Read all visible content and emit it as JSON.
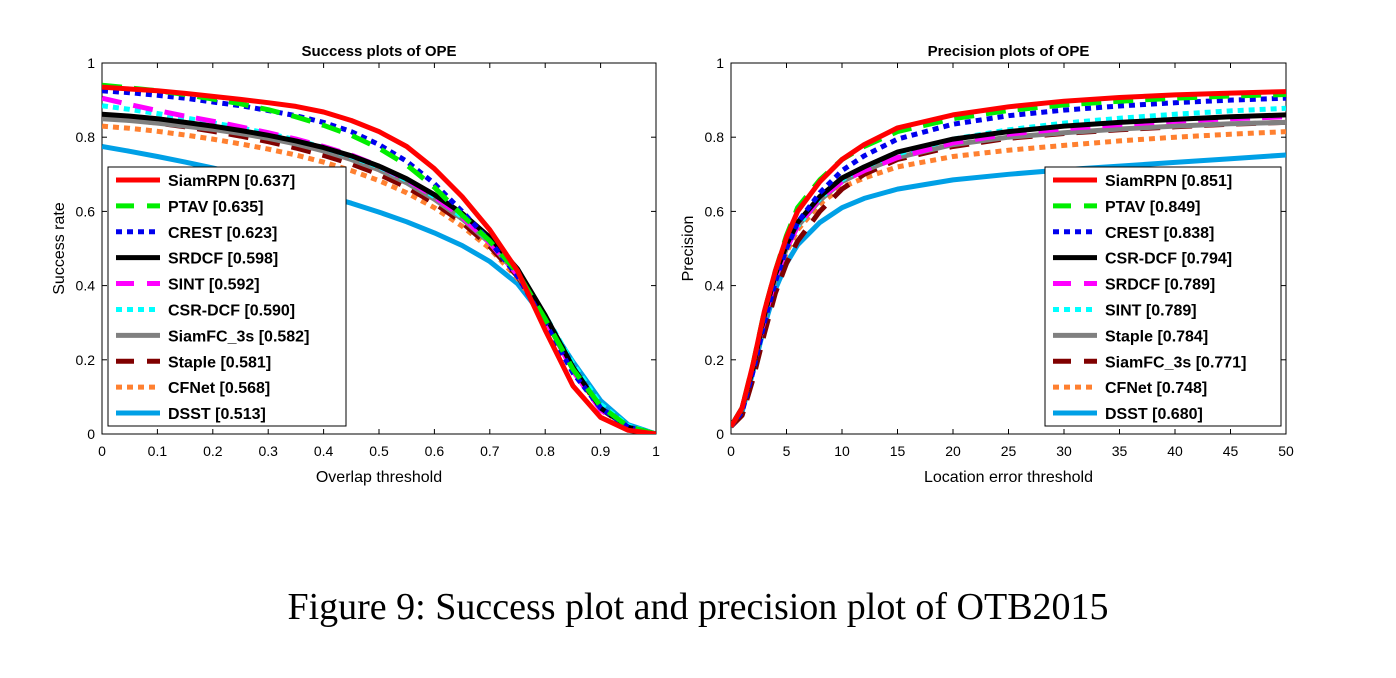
{
  "figure": {
    "caption": "Figure 9: Success plot and precision plot of OTB2015"
  },
  "chart_data": [
    {
      "type": "line",
      "title": "Success plots of OPE",
      "xlabel": "Overlap threshold",
      "ylabel": "Success rate",
      "xlim": [
        0,
        1
      ],
      "ylim": [
        0,
        1
      ],
      "xticks": [
        "0",
        "0.1",
        "0.2",
        "0.3",
        "0.4",
        "0.5",
        "0.6",
        "0.7",
        "0.8",
        "0.9",
        "1"
      ],
      "yticks": [
        "0",
        "0.2",
        "0.4",
        "0.6",
        "0.8",
        "1"
      ],
      "grid": false,
      "legend_position": "bottom-left",
      "x": [
        0,
        0.05,
        0.1,
        0.15,
        0.2,
        0.25,
        0.3,
        0.35,
        0.4,
        0.45,
        0.5,
        0.55,
        0.6,
        0.65,
        0.7,
        0.75,
        0.8,
        0.85,
        0.9,
        0.95,
        1
      ],
      "series": [
        {
          "name": "SiamRPN [0.637]",
          "color": "#ff0000",
          "dash": "solid",
          "values": [
            0.935,
            0.93,
            0.925,
            0.918,
            0.91,
            0.902,
            0.893,
            0.883,
            0.868,
            0.845,
            0.815,
            0.775,
            0.715,
            0.64,
            0.55,
            0.44,
            0.28,
            0.13,
            0.045,
            0.01,
            0
          ]
        },
        {
          "name": "PTAV [0.635]",
          "color": "#00ee00",
          "dash": "dash",
          "values": [
            0.94,
            0.933,
            0.925,
            0.915,
            0.903,
            0.89,
            0.874,
            0.855,
            0.832,
            0.805,
            0.77,
            0.725,
            0.665,
            0.59,
            0.52,
            0.435,
            0.31,
            0.175,
            0.075,
            0.02,
            0
          ]
        },
        {
          "name": "CREST [0.623]",
          "color": "#0000ee",
          "dash": "dot",
          "values": [
            0.925,
            0.92,
            0.913,
            0.905,
            0.895,
            0.885,
            0.872,
            0.858,
            0.84,
            0.815,
            0.78,
            0.735,
            0.675,
            0.6,
            0.52,
            0.425,
            0.3,
            0.165,
            0.07,
            0.018,
            0
          ]
        },
        {
          "name": "SRDCF [0.598]",
          "color": "#000000",
          "dash": "solid",
          "values": [
            0.862,
            0.857,
            0.85,
            0.84,
            0.83,
            0.818,
            0.805,
            0.79,
            0.772,
            0.75,
            0.722,
            0.688,
            0.645,
            0.595,
            0.53,
            0.445,
            0.32,
            0.18,
            0.07,
            0.018,
            0
          ]
        },
        {
          "name": "SINT [0.592]",
          "color": "#ff00ff",
          "dash": "dash",
          "values": [
            0.905,
            0.888,
            0.872,
            0.857,
            0.843,
            0.828,
            0.812,
            0.795,
            0.775,
            0.752,
            0.722,
            0.685,
            0.64,
            0.585,
            0.515,
            0.43,
            0.31,
            0.17,
            0.065,
            0.016,
            0
          ]
        },
        {
          "name": "CSR-DCF [0.590]",
          "color": "#00ffff",
          "dash": "dot",
          "values": [
            0.885,
            0.875,
            0.864,
            0.852,
            0.839,
            0.825,
            0.81,
            0.793,
            0.772,
            0.748,
            0.72,
            0.684,
            0.64,
            0.585,
            0.52,
            0.435,
            0.32,
            0.19,
            0.08,
            0.022,
            0
          ]
        },
        {
          "name": "SiamFC_3s [0.582]",
          "color": "#808080",
          "dash": "solid",
          "values": [
            0.85,
            0.845,
            0.838,
            0.83,
            0.821,
            0.81,
            0.797,
            0.782,
            0.763,
            0.74,
            0.712,
            0.677,
            0.633,
            0.58,
            0.515,
            0.43,
            0.31,
            0.18,
            0.07,
            0.018,
            0
          ]
        },
        {
          "name": "Staple [0.581]",
          "color": "#800000",
          "dash": "dash",
          "values": [
            0.855,
            0.847,
            0.838,
            0.828,
            0.816,
            0.803,
            0.788,
            0.771,
            0.751,
            0.728,
            0.7,
            0.665,
            0.622,
            0.57,
            0.505,
            0.425,
            0.31,
            0.175,
            0.068,
            0.017,
            0
          ]
        },
        {
          "name": "CFNet [0.568]",
          "color": "#ff8030",
          "dash": "dot",
          "values": [
            0.83,
            0.824,
            0.816,
            0.806,
            0.795,
            0.782,
            0.768,
            0.752,
            0.733,
            0.71,
            0.683,
            0.65,
            0.61,
            0.56,
            0.5,
            0.42,
            0.31,
            0.18,
            0.07,
            0.018,
            0
          ]
        },
        {
          "name": "DSST [0.513]",
          "color": "#00a0e6",
          "dash": "solid",
          "values": [
            0.775,
            0.762,
            0.748,
            0.733,
            0.717,
            0.7,
            0.682,
            0.663,
            0.643,
            0.622,
            0.598,
            0.572,
            0.542,
            0.508,
            0.465,
            0.405,
            0.31,
            0.195,
            0.09,
            0.025,
            0
          ]
        }
      ]
    },
    {
      "type": "line",
      "title": "Precision plots of OPE",
      "xlabel": "Location error threshold",
      "ylabel": "Precision",
      "xlim": [
        0,
        50
      ],
      "ylim": [
        0,
        1
      ],
      "xticks": [
        "0",
        "5",
        "10",
        "15",
        "20",
        "25",
        "30",
        "35",
        "40",
        "45",
        "50"
      ],
      "yticks": [
        "0",
        "0.2",
        "0.4",
        "0.6",
        "0.8",
        "1"
      ],
      "grid": false,
      "legend_position": "bottom-right",
      "x": [
        0,
        1,
        2,
        3,
        4,
        5,
        6,
        8,
        10,
        12,
        15,
        20,
        25,
        30,
        35,
        40,
        45,
        50
      ],
      "series": [
        {
          "name": "SiamRPN [0.851]",
          "color": "#ff0000",
          "dash": "solid",
          "values": [
            0.02,
            0.07,
            0.19,
            0.33,
            0.44,
            0.53,
            0.6,
            0.68,
            0.74,
            0.78,
            0.825,
            0.86,
            0.882,
            0.897,
            0.907,
            0.914,
            0.919,
            0.923
          ]
        },
        {
          "name": "PTAV [0.849]",
          "color": "#00ee00",
          "dash": "dash",
          "values": [
            0.02,
            0.07,
            0.19,
            0.33,
            0.44,
            0.535,
            0.61,
            0.685,
            0.74,
            0.775,
            0.815,
            0.85,
            0.872,
            0.887,
            0.897,
            0.905,
            0.911,
            0.915
          ]
        },
        {
          "name": "CREST [0.838]",
          "color": "#0000ee",
          "dash": "dot",
          "values": [
            0.02,
            0.06,
            0.17,
            0.3,
            0.41,
            0.5,
            0.57,
            0.65,
            0.71,
            0.75,
            0.795,
            0.835,
            0.858,
            0.873,
            0.884,
            0.893,
            0.9,
            0.905
          ]
        },
        {
          "name": "CSR-DCF [0.794]",
          "color": "#000000",
          "dash": "solid",
          "values": [
            0.02,
            0.07,
            0.18,
            0.32,
            0.43,
            0.51,
            0.57,
            0.64,
            0.69,
            0.72,
            0.76,
            0.795,
            0.815,
            0.83,
            0.84,
            0.848,
            0.855,
            0.86
          ]
        },
        {
          "name": "SRDCF [0.789]",
          "color": "#ff00ff",
          "dash": "dash",
          "values": [
            0.02,
            0.07,
            0.18,
            0.31,
            0.42,
            0.5,
            0.56,
            0.635,
            0.68,
            0.71,
            0.745,
            0.785,
            0.808,
            0.823,
            0.834,
            0.843,
            0.85,
            0.855
          ]
        },
        {
          "name": "SINT [0.789]",
          "color": "#00ffff",
          "dash": "dot",
          "values": [
            0.02,
            0.07,
            0.18,
            0.31,
            0.42,
            0.5,
            0.56,
            0.635,
            0.685,
            0.72,
            0.755,
            0.795,
            0.82,
            0.838,
            0.851,
            0.862,
            0.871,
            0.878
          ]
        },
        {
          "name": "Staple [0.784]",
          "color": "#808080",
          "dash": "solid",
          "values": [
            0.02,
            0.07,
            0.18,
            0.31,
            0.42,
            0.5,
            0.56,
            0.63,
            0.68,
            0.71,
            0.745,
            0.78,
            0.8,
            0.812,
            0.822,
            0.83,
            0.836,
            0.84
          ]
        },
        {
          "name": "SiamFC_3s [0.771]",
          "color": "#800000",
          "dash": "dash",
          "values": [
            0.02,
            0.05,
            0.15,
            0.27,
            0.38,
            0.46,
            0.52,
            0.6,
            0.66,
            0.7,
            0.74,
            0.775,
            0.797,
            0.81,
            0.82,
            0.828,
            0.835,
            0.84
          ]
        },
        {
          "name": "CFNet [0.748]",
          "color": "#ff8030",
          "dash": "dot",
          "values": [
            0.02,
            0.07,
            0.18,
            0.3,
            0.41,
            0.49,
            0.55,
            0.62,
            0.665,
            0.69,
            0.72,
            0.748,
            0.765,
            0.778,
            0.79,
            0.8,
            0.808,
            0.815
          ]
        },
        {
          "name": "DSST [0.680]",
          "color": "#00a0e6",
          "dash": "solid",
          "values": [
            0.02,
            0.06,
            0.17,
            0.29,
            0.39,
            0.46,
            0.51,
            0.57,
            0.61,
            0.635,
            0.66,
            0.685,
            0.7,
            0.712,
            0.722,
            0.732,
            0.742,
            0.752
          ]
        }
      ]
    }
  ]
}
